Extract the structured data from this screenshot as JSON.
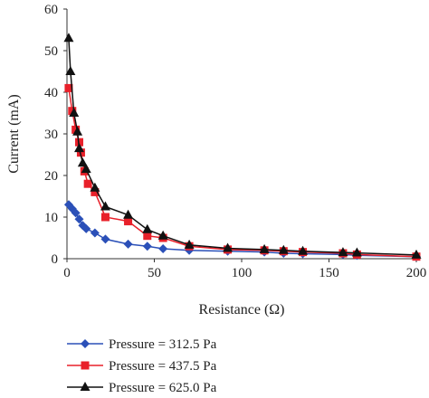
{
  "chart_data": {
    "type": "line",
    "title": "",
    "xlabel": "Resistance (Ω)",
    "ylabel": "Current (mA)",
    "xlim": [
      0,
      200
    ],
    "ylim": [
      0,
      60
    ],
    "x_ticks": [
      "0",
      "50",
      "100",
      "150",
      "200"
    ],
    "y_ticks": [
      "0",
      "10",
      "20",
      "30",
      "40",
      "50",
      "60"
    ],
    "grid": false,
    "legend_position": "bottom",
    "series": [
      {
        "name": "Pressure = 312.5 Pa",
        "color": "#2B50B8",
        "marker": "diamond",
        "x": [
          1,
          3,
          5,
          7,
          9,
          11,
          16,
          22,
          35,
          46,
          55,
          70,
          92,
          113,
          124,
          135,
          158,
          166,
          200
        ],
        "y": [
          13,
          12,
          11,
          9.5,
          8,
          7.2,
          6.2,
          4.7,
          3.5,
          3.0,
          2.4,
          2.0,
          1.8,
          1.6,
          1.3,
          1.2,
          1.0,
          0.8,
          0.5
        ]
      },
      {
        "name": "Pressure = 437.5 Pa",
        "color": "#E8202A",
        "marker": "square",
        "x": [
          1,
          3,
          5,
          7,
          8,
          10,
          12,
          16,
          22,
          35,
          46,
          55,
          70,
          92,
          113,
          124,
          135,
          158,
          166,
          200
        ],
        "y": [
          41,
          35.5,
          31,
          28,
          25.5,
          21,
          18,
          16,
          10,
          9,
          5.5,
          5,
          3,
          2.2,
          2,
          1.8,
          1.6,
          1.3,
          1,
          0.5
        ]
      },
      {
        "name": "Pressure = 625.0 Pa",
        "color": "#111111",
        "marker": "triangle",
        "x": [
          1,
          2,
          4,
          6,
          7,
          9,
          11,
          16,
          22,
          35,
          46,
          55,
          70,
          92,
          113,
          124,
          135,
          158,
          166,
          200
        ],
        "y": [
          53,
          45,
          35,
          30.5,
          26.5,
          23,
          21.5,
          17,
          12.5,
          10.5,
          7,
          5.5,
          3.3,
          2.5,
          2.2,
          2,
          1.8,
          1.5,
          1.4,
          0.9
        ]
      }
    ]
  }
}
